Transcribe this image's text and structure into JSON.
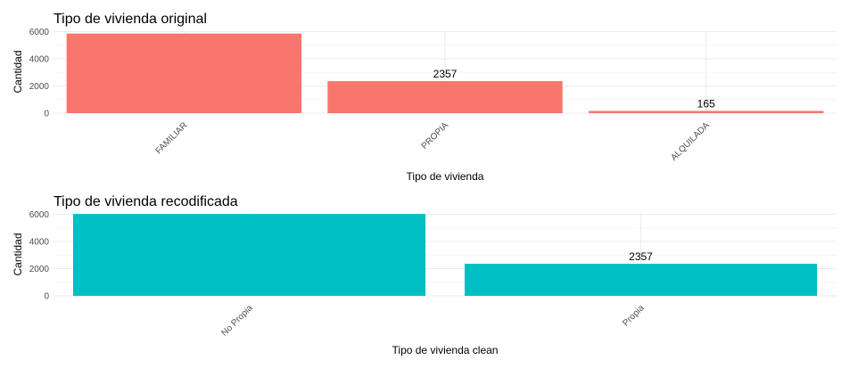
{
  "chart_data": [
    {
      "type": "bar",
      "title": "Tipo de vivienda original",
      "xlabel": "Tipo de vivienda",
      "ylabel": "Cantidad",
      "categories": [
        "FAMILIAR",
        "PROPIA",
        "ALQUILADA"
      ],
      "values": [
        5860,
        2357,
        165
      ],
      "data_labels": [
        "",
        "2357",
        "165"
      ],
      "ylim": [
        0,
        6100
      ],
      "yticks": [
        0,
        2000,
        4000,
        6000
      ],
      "ytick_labels": [
        "0",
        "2000",
        "4000",
        "6000"
      ],
      "color": "#F8766D",
      "grid": true,
      "legend": "none"
    },
    {
      "type": "bar",
      "title": "Tipo de vivienda recodificada",
      "xlabel": "Tipo de vivienda clean",
      "ylabel": "Cantidad",
      "categories": [
        "No Propia",
        "Propia"
      ],
      "values": [
        6025,
        2357
      ],
      "data_labels": [
        "",
        "2357"
      ],
      "ylim": [
        0,
        6100
      ],
      "yticks": [
        0,
        2000,
        4000,
        6000
      ],
      "ytick_labels": [
        "0",
        "2000",
        "4000",
        "6000"
      ],
      "color": "#00BFC4",
      "grid": true,
      "legend": "none"
    }
  ]
}
